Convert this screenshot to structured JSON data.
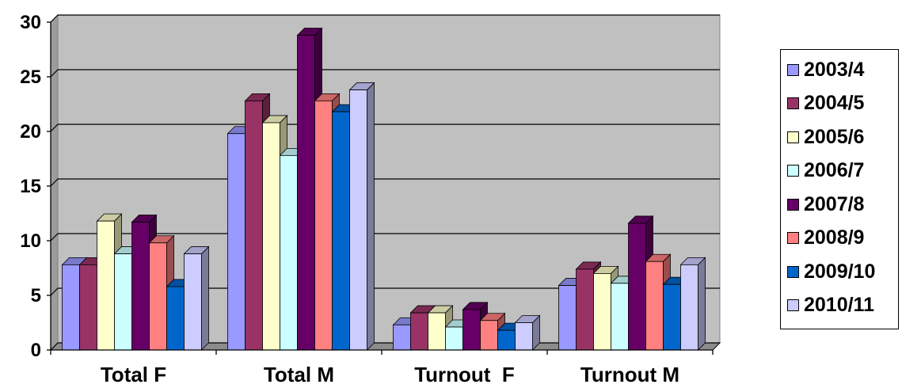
{
  "chart_data": {
    "type": "bar",
    "title": "",
    "xlabel": "",
    "ylabel": "",
    "categories": [
      "Total F",
      "Total M",
      "Turnout  F",
      "Turnout M"
    ],
    "ylim": [
      0,
      30
    ],
    "yticks": [
      0,
      5,
      10,
      15,
      20,
      25,
      30
    ],
    "grid": true,
    "legend_position": "right",
    "series": [
      {
        "name": "2003/4",
        "color": "#9999FF",
        "values": [
          7.8,
          19.8,
          2.3,
          5.9
        ]
      },
      {
        "name": "2004/5",
        "color": "#993366",
        "values": [
          7.8,
          22.8,
          3.4,
          7.4
        ]
      },
      {
        "name": "2005/6",
        "color": "#FFFFCC",
        "values": [
          11.8,
          20.8,
          3.4,
          7.0
        ]
      },
      {
        "name": "2006/7",
        "color": "#CCFFFF",
        "values": [
          8.8,
          17.8,
          2.1,
          6.1
        ]
      },
      {
        "name": "2007/8",
        "color": "#660066",
        "values": [
          11.7,
          28.8,
          3.7,
          11.6
        ]
      },
      {
        "name": "2008/9",
        "color": "#FF8080",
        "values": [
          9.8,
          22.8,
          2.7,
          8.1
        ]
      },
      {
        "name": "2009/10",
        "color": "#0066CC",
        "values": [
          5.8,
          21.8,
          1.8,
          6.0
        ]
      },
      {
        "name": "2010/11",
        "color": "#CCCCFF",
        "values": [
          8.8,
          23.8,
          2.5,
          7.8
        ]
      }
    ]
  }
}
